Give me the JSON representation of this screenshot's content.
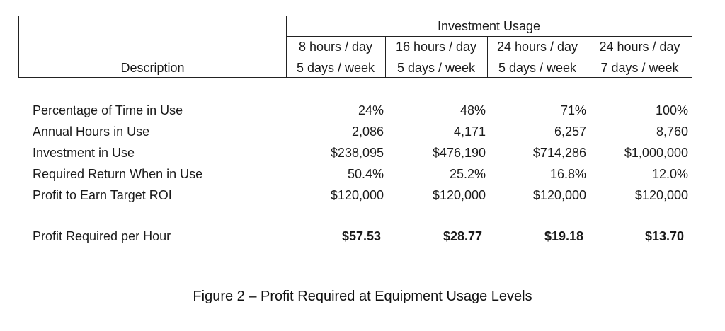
{
  "table": {
    "group_header": "Investment Usage",
    "description_header": "Description",
    "columns": [
      {
        "line1": "8 hours / day",
        "line2": "5 days / week"
      },
      {
        "line1": "16 hours / day",
        "line2": "5 days / week"
      },
      {
        "line1": "24 hours / day",
        "line2": "5 days / week"
      },
      {
        "line1": "24 hours / day",
        "line2": "7 days / week"
      }
    ],
    "rows": [
      {
        "label": "Percentage of Time in Use",
        "values": [
          "24%",
          "48%",
          "71%",
          "100%"
        ]
      },
      {
        "label": "Annual Hours in Use",
        "values": [
          "2,086",
          "4,171",
          "6,257",
          "8,760"
        ]
      },
      {
        "label": "Investment in Use",
        "values": [
          "$238,095",
          "$476,190",
          "$714,286",
          "$1,000,000"
        ]
      },
      {
        "label": "Required Return When in Use",
        "values": [
          "50.4%",
          "25.2%",
          "16.8%",
          "12.0%"
        ]
      },
      {
        "label": "Profit to Earn Target ROI",
        "values": [
          "$120,000",
          "$120,000",
          "$120,000",
          "$120,000"
        ]
      }
    ],
    "total_row": {
      "label": "Profit Required per Hour",
      "values": [
        "$57.53",
        "$28.77",
        "$19.18",
        "$13.70"
      ]
    }
  },
  "caption": "Figure 2 – Profit Required at Equipment Usage Levels"
}
